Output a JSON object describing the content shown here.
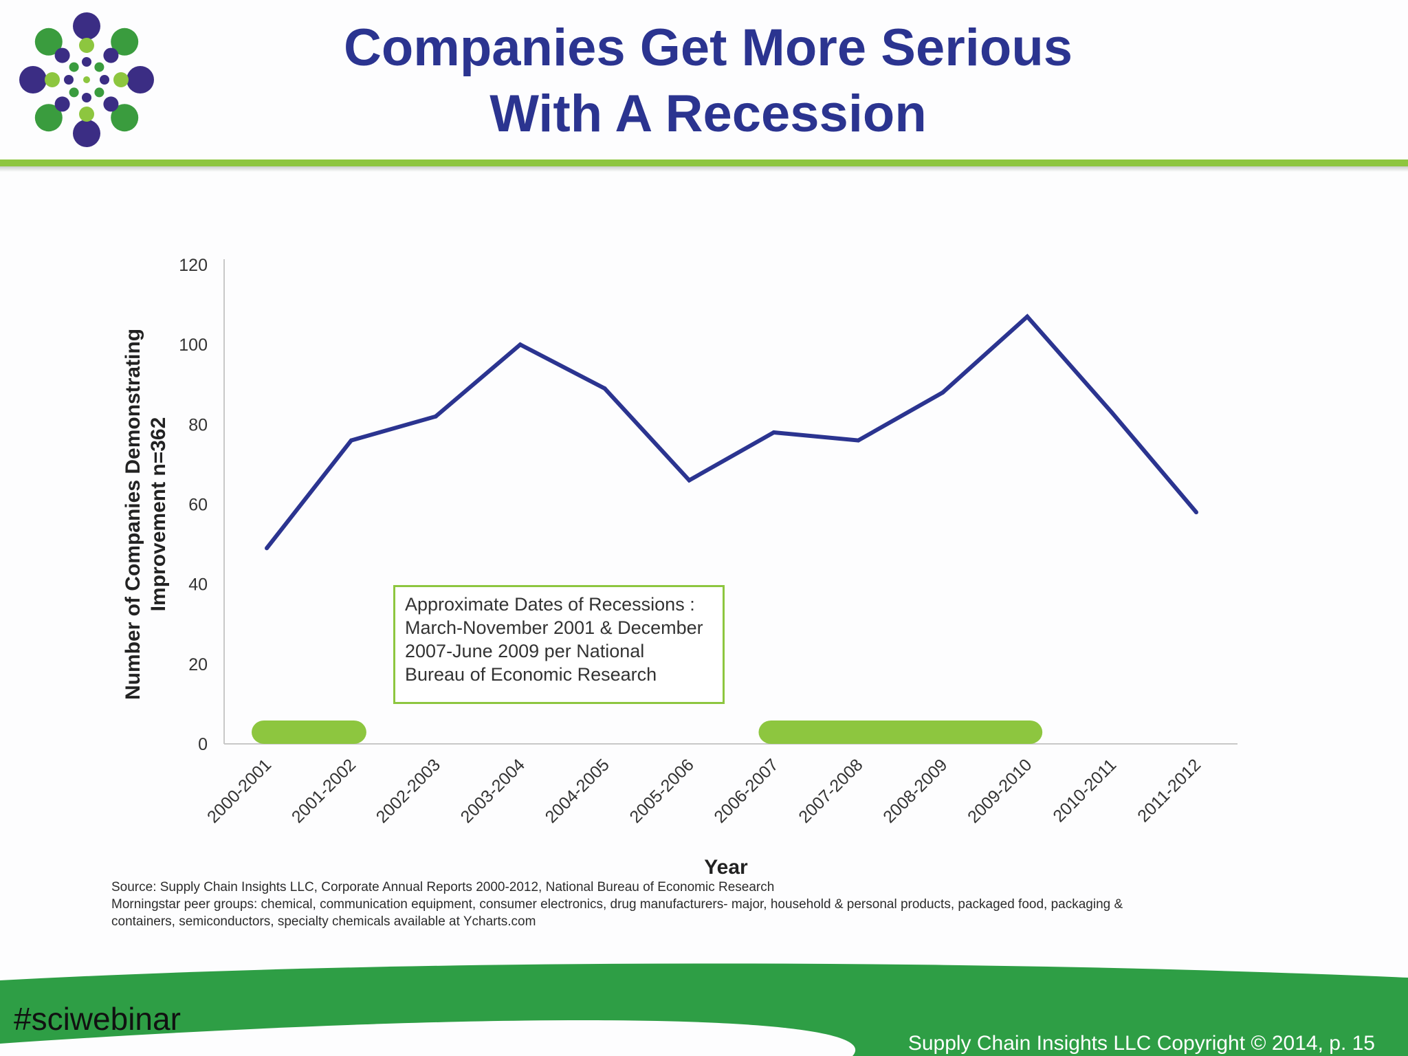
{
  "title": {
    "line1": "Companies Get More Serious",
    "line2": "With A Recession"
  },
  "colors": {
    "title": "#2b3490",
    "line": "#2b3490",
    "accent_green": "#8dc63f",
    "footer_green": "#2e9e45",
    "logo_purple": "#3b2d84",
    "logo_green": "#3a9c3e",
    "logo_light_green": "#8dc63f"
  },
  "logo": {
    "icon": "dotted-flower-logo-icon"
  },
  "chart_data": {
    "type": "line",
    "categories": [
      "2000-2001",
      "2001-2002",
      "2002-2003",
      "2003-2004",
      "2004-2005",
      "2005-2006",
      "2006-2007",
      "2007-2008",
      "2008-2009",
      "2009-2010",
      "2010-2011",
      "2011-2012"
    ],
    "series": [
      {
        "values": [
          49,
          76,
          82,
          100,
          89,
          66,
          78,
          76,
          88,
          107,
          83,
          58
        ]
      }
    ],
    "xlabel": "Year",
    "ylabel_lines": [
      "Number of Companies Demonstrating",
      "Improvement n=362"
    ],
    "ylim": [
      0,
      120
    ],
    "yticks": [
      0,
      20,
      40,
      60,
      80,
      100,
      120
    ],
    "grid": false,
    "recession_bands": [
      {
        "from": "2000-2001",
        "to": "2001-2002"
      },
      {
        "from": "2006-2007",
        "to": "2009-2010"
      }
    ],
    "annotation": {
      "lines": [
        "Approximate Dates of Recessions :",
        "March-November 2001 & December",
        "2007-June 2009 per National",
        "Bureau of Economic Research"
      ]
    }
  },
  "source": {
    "line1": "Source: Supply Chain Insights LLC, Corporate Annual Reports 2000-2012, National Bureau of Economic Research",
    "line2": "Morningstar peer groups: chemical, communication equipment, consumer electronics, drug manufacturers- major, household & personal products, packaged food, packaging &",
    "line3": "containers, semiconductors, specialty chemicals available at Ycharts.com"
  },
  "footer": {
    "hashtag": "#sciwebinar",
    "copyright": "Supply Chain Insights LLC Copyright © 2014, p. 15"
  }
}
